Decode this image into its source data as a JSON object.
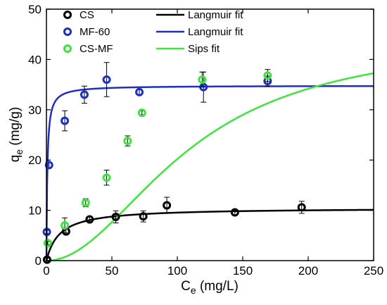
{
  "chart_data": {
    "type": "scatter",
    "xlabel": {
      "base": "C",
      "sub": "e",
      "rest": " (mg/L)"
    },
    "ylabel": {
      "base": "q",
      "sub": "e",
      "rest": " (mg/g)"
    },
    "xlim": [
      0,
      250
    ],
    "ylim": [
      0,
      50
    ],
    "xticks": [
      0,
      50,
      100,
      150,
      200,
      250
    ],
    "yticks": [
      0,
      10,
      20,
      30,
      40,
      50
    ],
    "grid": false,
    "legend_position": "top-left",
    "series": [
      {
        "name": "CS",
        "color": "#000000",
        "points": [
          {
            "x": 0.5,
            "y": 0.2,
            "err": 0.3
          },
          {
            "x": 15,
            "y": 5.8,
            "err": 0.6
          },
          {
            "x": 33,
            "y": 8.2,
            "err": 0.5
          },
          {
            "x": 53,
            "y": 8.7,
            "err": 1.2
          },
          {
            "x": 74,
            "y": 8.8,
            "err": 1.1
          },
          {
            "x": 92,
            "y": 11.0,
            "err": 1.6
          },
          {
            "x": 144,
            "y": 9.6,
            "err": 0.5
          },
          {
            "x": 195,
            "y": 10.6,
            "err": 1.2
          }
        ]
      },
      {
        "name": "MF-60",
        "color": "#1f2fc4",
        "points": [
          {
            "x": 0.3,
            "y": 5.7,
            "err": 0.3
          },
          {
            "x": 2,
            "y": 19.0,
            "err": 0.5
          },
          {
            "x": 14,
            "y": 27.8,
            "err": 2.0
          },
          {
            "x": 29,
            "y": 33.0,
            "err": 1.7
          },
          {
            "x": 46,
            "y": 36.0,
            "err": 3.4
          },
          {
            "x": 71,
            "y": 33.5,
            "err": 0.5
          },
          {
            "x": 120,
            "y": 34.5,
            "err": 3.0
          },
          {
            "x": 169,
            "y": 35.7,
            "err": 1.0
          }
        ]
      },
      {
        "name": "CS-MF",
        "color": "#3fe43f",
        "points": [
          {
            "x": 1,
            "y": 3.5,
            "err": 0.3
          },
          {
            "x": 14,
            "y": 7.0,
            "err": 1.5
          },
          {
            "x": 30,
            "y": 11.5,
            "err": 0.8
          },
          {
            "x": 46,
            "y": 16.5,
            "err": 1.5
          },
          {
            "x": 62,
            "y": 23.8,
            "err": 1.0
          },
          {
            "x": 73,
            "y": 29.4,
            "err": 0.4
          },
          {
            "x": 119,
            "y": 36.0,
            "err": 1.5
          },
          {
            "x": 169,
            "y": 36.8,
            "err": 1.2
          }
        ]
      }
    ],
    "fits": [
      {
        "name": "Langmuir fit",
        "color": "#000000",
        "model": "langmuir",
        "qmax": 10.5,
        "K": 0.1
      },
      {
        "name": "Langmuir fit",
        "color": "#1f2fc4",
        "model": "langmuir",
        "qmax": 34.8,
        "K": 1.5
      },
      {
        "name": "Sips fit",
        "color": "#3fe43f",
        "model": "sips",
        "qmax": 44.4,
        "K": 8.35e-05,
        "n": 2.0
      }
    ]
  }
}
